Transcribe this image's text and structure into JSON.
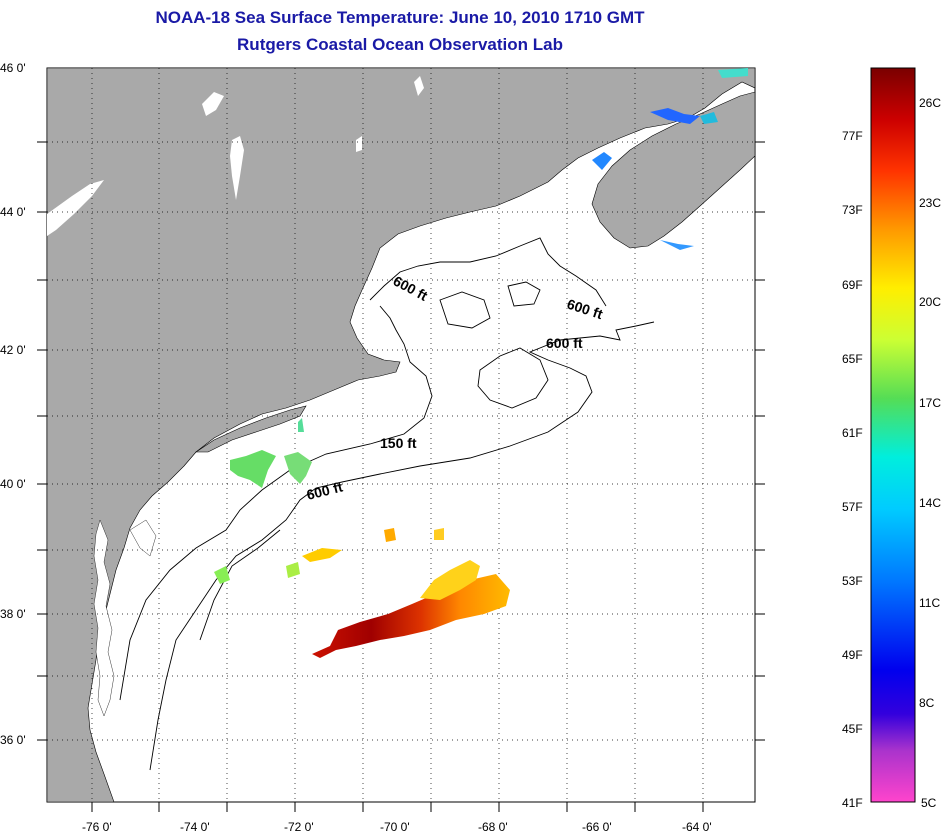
{
  "header": {
    "title": "NOAA-18 Sea Surface Temperature:  June 10, 2010 1710 GMT",
    "subtitle": "Rutgers Coastal Ocean Observation Lab"
  },
  "map": {
    "lon_range": [
      -77,
      -63
    ],
    "lat_range": [
      35,
      46
    ],
    "lat_labels": [
      "46 0'",
      "44 0'",
      "42 0'",
      "40 0'",
      "38 0'",
      "36 0'"
    ],
    "lon_labels": [
      "-76 0'",
      "-74 0'",
      "-72 0'",
      "-70 0'",
      "-68 0'",
      "-66 0'",
      "-64 0'"
    ],
    "contour_labels": [
      "600 ft",
      "600 ft",
      "600 ft",
      "150 ft",
      "600 ft"
    ]
  },
  "colorbar": {
    "fahrenheit_labels": [
      "77F",
      "73F",
      "69F",
      "65F",
      "61F",
      "57F",
      "53F",
      "49F",
      "45F",
      "41F"
    ],
    "celsius_labels": [
      "26C",
      "23C",
      "20C",
      "17C",
      "14C",
      "11C",
      "8C",
      "5C"
    ],
    "colors": [
      "#8b0000",
      "#cc0000",
      "#ff2200",
      "#ff8800",
      "#ffdd00",
      "#ccff33",
      "#55dd55",
      "#00eedd",
      "#00aaff",
      "#0044ff",
      "#0000ee",
      "#7722cc",
      "#ff44cc"
    ]
  }
}
